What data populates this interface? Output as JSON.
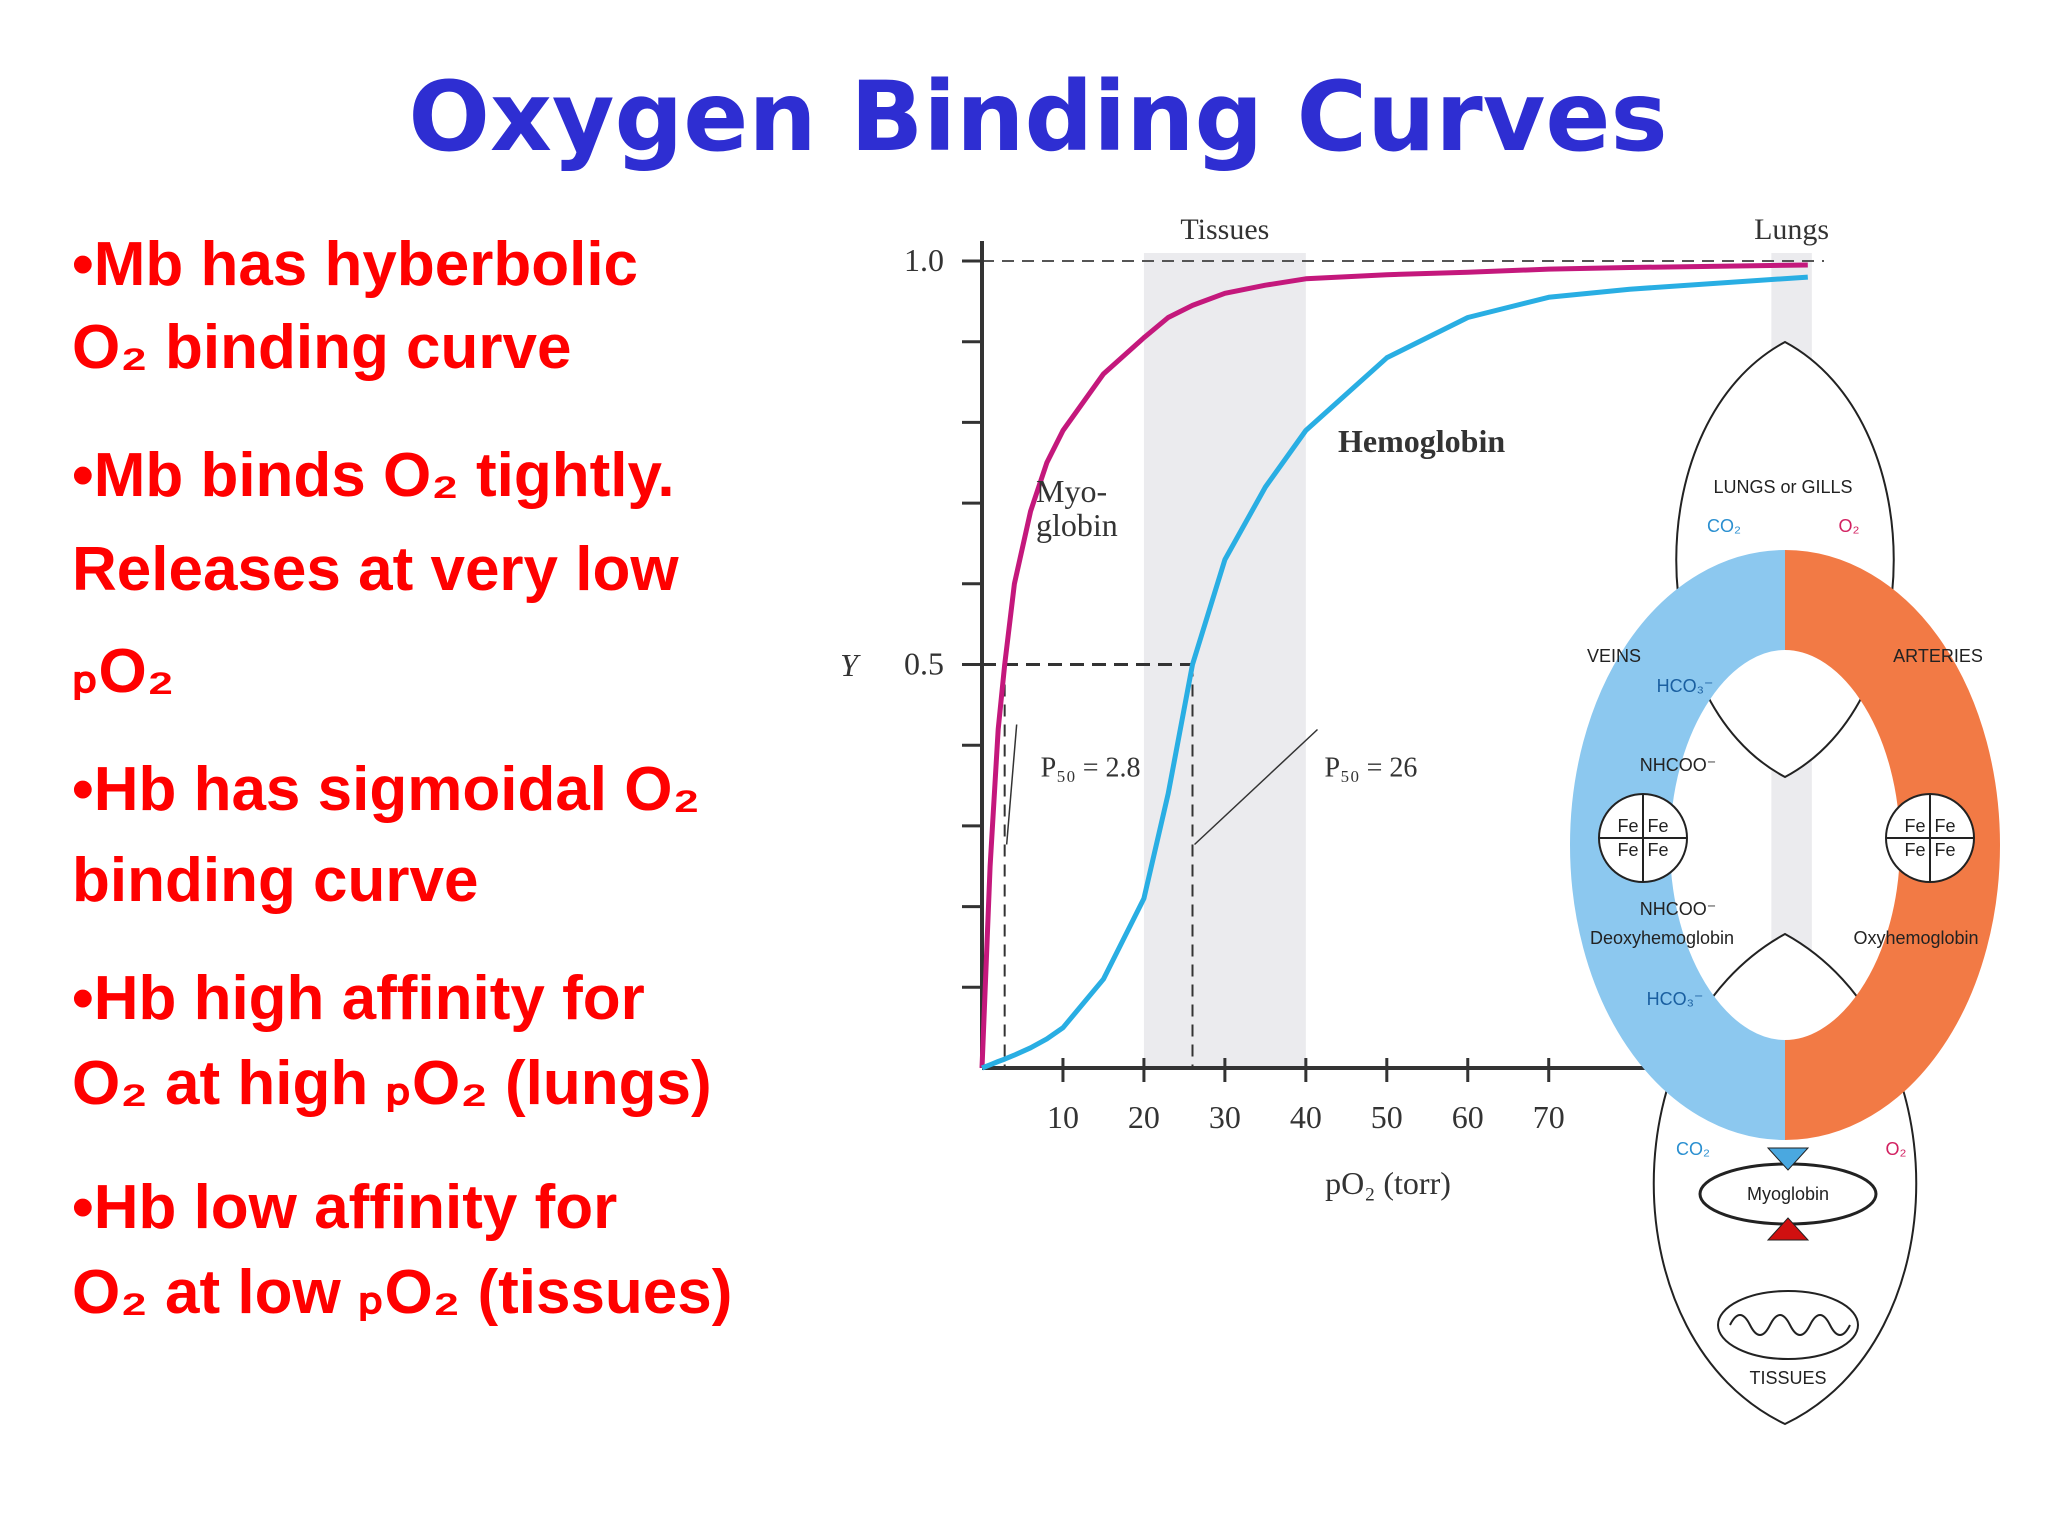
{
  "title": "Oxygen Binding Curves",
  "bullets": [
    [
      "•Mb has hyberbolic",
      "O₂ binding curve"
    ],
    [
      "•Mb binds O₂ tightly.",
      "Releases at very low",
      "ₚO₂"
    ],
    [
      "•Hb has sigmoidal O₂",
      "binding curve"
    ],
    [
      "•Hb high affinity for",
      "O₂ at high ₚO₂ (lungs)"
    ],
    [
      "•Hb low affinity for",
      "O₂ at low ₚO₂ (tissues)"
    ]
  ],
  "chart_data": {
    "type": "line",
    "x_label": "pO₂ (torr)",
    "y_label": "Y",
    "x": [
      0,
      1,
      2,
      2.8,
      4,
      6,
      8,
      10,
      15,
      20,
      23,
      26,
      30,
      35,
      40,
      50,
      60,
      70,
      80,
      102
    ],
    "series": [
      {
        "name": "Myo-\nglobin",
        "color": "#c4187c",
        "values": [
          0,
          0.25,
          0.42,
          0.5,
          0.6,
          0.69,
          0.75,
          0.79,
          0.86,
          0.905,
          0.93,
          0.945,
          0.96,
          0.97,
          0.978,
          0.983,
          0.986,
          0.99,
          0.992,
          0.995
        ]
      },
      {
        "name": "Hemoglobin",
        "color": "#29aee3",
        "values": [
          0,
          0.004,
          0.008,
          0.011,
          0.016,
          0.025,
          0.036,
          0.05,
          0.11,
          0.21,
          0.34,
          0.5,
          0.63,
          0.72,
          0.79,
          0.88,
          0.93,
          0.955,
          0.965,
          0.98
        ]
      }
    ],
    "xlim": [
      0,
      104
    ],
    "ylim": [
      0,
      1
    ],
    "xticks": [
      10,
      20,
      30,
      40,
      50,
      60,
      70
    ],
    "yticks": [
      {
        "value": 0.1,
        "label": null
      },
      {
        "value": 0.2,
        "label": null
      },
      {
        "value": 0.3,
        "label": null
      },
      {
        "value": 0.4,
        "label": null
      },
      0.5,
      {
        "value": 0.6,
        "label": null
      },
      {
        "value": 0.7,
        "label": null
      },
      {
        "value": 0.8,
        "label": null
      },
      {
        "value": 0.9,
        "label": null
      },
      {
        "value": 1,
        "label": "1.0"
      }
    ],
    "bands": [
      {
        "label": "Tissues",
        "range": [
          20,
          40
        ]
      },
      {
        "label": "Lungs",
        "range": [
          97.5,
          102.5
        ]
      }
    ],
    "annotations": [
      {
        "label": "P₅₀ = 2.8",
        "x": 2.8,
        "y": 0.5
      },
      {
        "label": "P₅₀ = 26",
        "x": 26,
        "y": 0.5
      }
    ]
  },
  "diagram": {
    "labels": [
      "LUNGS or GILLS",
      "CO₂",
      "O₂",
      "VEINS",
      "ARTERIES",
      "HCO₃⁻",
      "NHCOO⁻",
      "Fe",
      "Deoxyhemoglobin",
      "Oxyhemoglobin",
      "Myoglobin",
      "TISSUES"
    ]
  }
}
